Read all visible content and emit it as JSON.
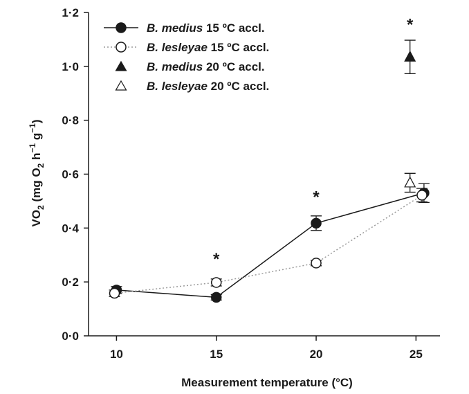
{
  "chart_data": {
    "type": "scatter",
    "xlabel": "Measurement  temperature (°C)",
    "ylabel": {
      "main": "VO",
      "sub": "2",
      "unit_open": " (mg O",
      "unit_sub": "2",
      "unit_h": " h",
      "unit_exp1": "−1",
      "unit_g": " g",
      "unit_exp2": "−1",
      "unit_close": ")"
    },
    "xlim": [
      8.6,
      26.2
    ],
    "ylim": [
      0.0,
      1.2
    ],
    "x_ticks": [
      10,
      15,
      20,
      25
    ],
    "x_tick_labels": [
      "10",
      "15",
      "20",
      "25"
    ],
    "y_ticks": [
      0.0,
      0.2,
      0.4,
      0.6,
      0.8,
      1.0,
      1.2
    ],
    "y_tick_labels": [
      "0·0",
      "0·2",
      "0·4",
      "0·6",
      "0·8",
      "1·0",
      "1·2"
    ],
    "legend_position": "top-left",
    "colors": {
      "ink": "#1a1a1a",
      "dotted_line": "#9a9a9a",
      "error_bars": "#1a1a1a"
    },
    "series": [
      {
        "species": "B. medius",
        "suffix": " 15 ºC accl.",
        "marker": "circle-filled",
        "line": "solid",
        "points": [
          {
            "x": 10.0,
            "y": 0.17,
            "err": 0.013
          },
          {
            "x": 15.0,
            "y": 0.143,
            "err": 0.01
          },
          {
            "x": 20.0,
            "y": 0.418,
            "err": 0.027
          },
          {
            "x": 25.4,
            "y": 0.53,
            "err": 0.035
          }
        ]
      },
      {
        "species": "B. lesleyae",
        "suffix": " 15 ºC accl.",
        "marker": "circle-open",
        "line": "dotted",
        "points": [
          {
            "x": 9.9,
            "y": 0.158,
            "err": 0.012
          },
          {
            "x": 15.0,
            "y": 0.198,
            "err": 0.013
          },
          {
            "x": 20.0,
            "y": 0.27,
            "err": 0.01
          },
          {
            "x": 25.3,
            "y": 0.522,
            "err": 0.025
          }
        ]
      },
      {
        "species": "B. medius",
        "suffix": " 20 ºC accl.",
        "marker": "triangle-filled",
        "line": "none",
        "points": [
          {
            "x": 24.7,
            "y": 1.035,
            "err": 0.062
          }
        ]
      },
      {
        "species": "B. lesleyae",
        "suffix": " 20 ºC accl.",
        "marker": "triangle-open",
        "line": "none",
        "points": [
          {
            "x": 24.7,
            "y": 0.568,
            "err": 0.035
          }
        ]
      }
    ],
    "annotations": [
      {
        "text": "*",
        "x": 15.0,
        "y": 0.29
      },
      {
        "text": "*",
        "x": 20.0,
        "y": 0.52
      },
      {
        "text": "*",
        "x": 24.7,
        "y": 1.16
      }
    ]
  }
}
